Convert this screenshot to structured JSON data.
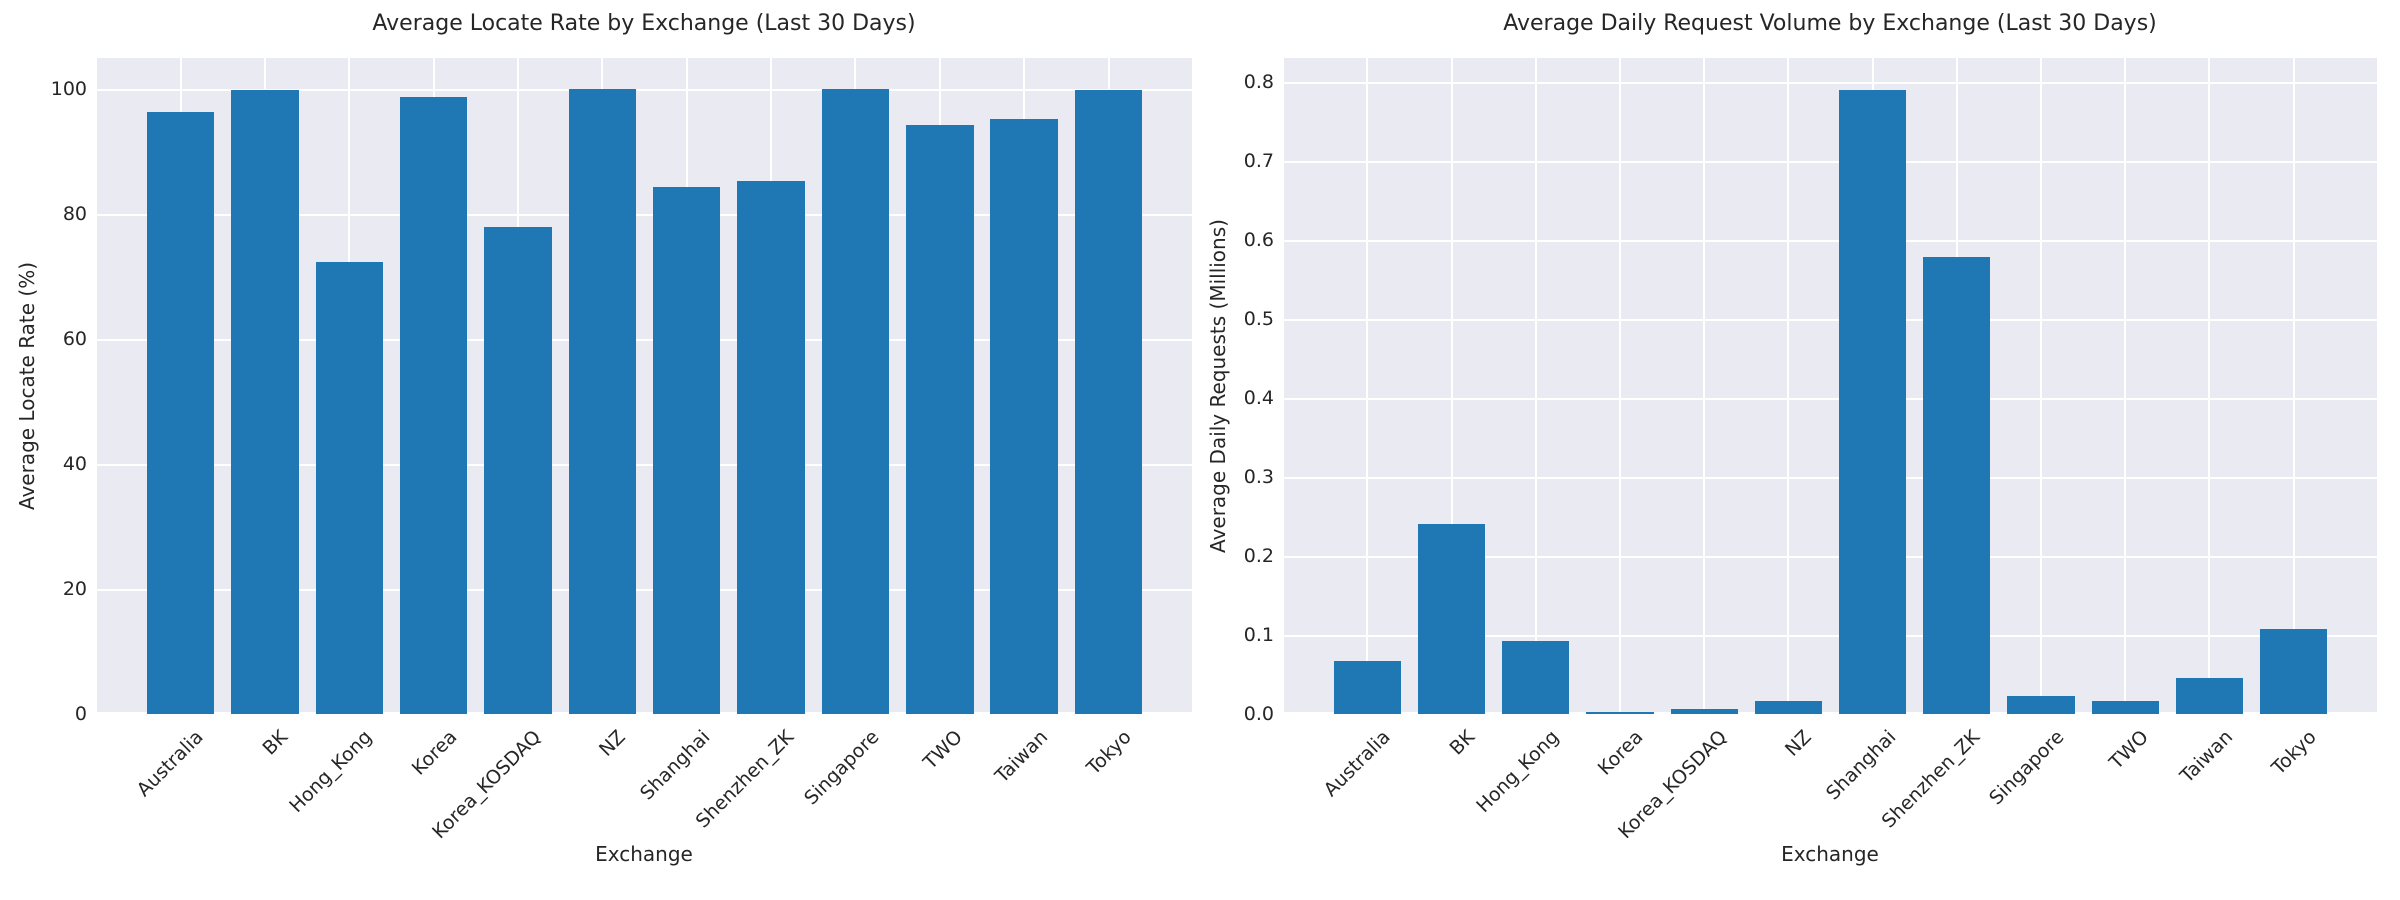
{
  "figure": {
    "background_color": "#ffffff",
    "axes_background_color": "#eaeaf2",
    "grid_color": "#ffffff",
    "bar_color": "#1f77b4",
    "text_color": "#262626"
  },
  "chart_data": [
    {
      "type": "bar",
      "title": "Average Locate Rate by Exchange (Last 30 Days)",
      "xlabel": "Exchange",
      "ylabel": "Average Locate Rate (%)",
      "categories": [
        "Australia",
        "BK",
        "Hong_Kong",
        "Korea",
        "Korea_KOSDAQ",
        "NZ",
        "Shanghai",
        "Shenzhen_ZK",
        "Singapore",
        "TWO",
        "Taiwan",
        "Tokyo"
      ],
      "values": [
        96.3,
        99.9,
        72.4,
        98.8,
        78.0,
        100.0,
        84.4,
        85.4,
        100.0,
        94.3,
        95.2,
        99.9
      ],
      "ylim": [
        0,
        105
      ],
      "yticks": [
        0,
        20,
        40,
        60,
        80,
        100
      ],
      "ytick_labels": [
        "0",
        "20",
        "40",
        "60",
        "80",
        "100"
      ],
      "grid": true,
      "legend": null,
      "xtick_rotation_deg": 45
    },
    {
      "type": "bar",
      "title": "Average Daily Request Volume by Exchange (Last 30 Days)",
      "xlabel": "Exchange",
      "ylabel": "Average Daily Requests (Millions)",
      "categories": [
        "Australia",
        "BK",
        "Hong_Kong",
        "Korea",
        "Korea_KOSDAQ",
        "NZ",
        "Shanghai",
        "Shenzhen_ZK",
        "Singapore",
        "TWO",
        "Taiwan",
        "Tokyo"
      ],
      "values": [
        0.067,
        0.241,
        0.093,
        0.002,
        0.006,
        0.017,
        0.79,
        0.578,
        0.023,
        0.016,
        0.046,
        0.107
      ],
      "ylim": [
        0,
        0.83
      ],
      "yticks": [
        0.0,
        0.1,
        0.2,
        0.3,
        0.4,
        0.5,
        0.6,
        0.7,
        0.8
      ],
      "ytick_labels": [
        "0.0",
        "0.1",
        "0.2",
        "0.3",
        "0.4",
        "0.5",
        "0.6",
        "0.7",
        "0.8"
      ],
      "grid": true,
      "legend": null,
      "xtick_rotation_deg": 45
    }
  ]
}
